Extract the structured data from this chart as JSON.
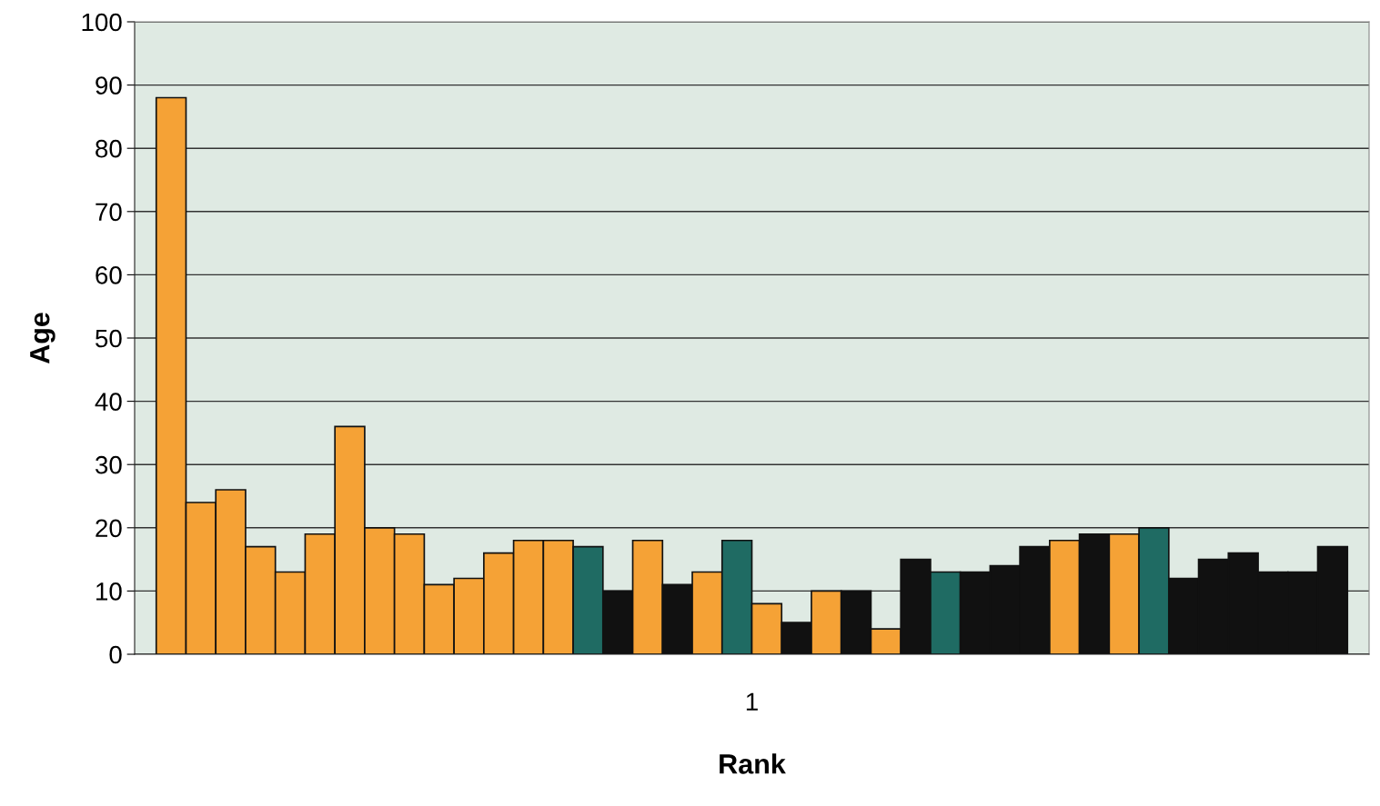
{
  "chart_data": {
    "type": "bar",
    "xlabel": "Rank",
    "ylabel": "Age",
    "categories": [
      "1"
    ],
    "ylim": [
      0,
      100
    ],
    "yticks": [
      0,
      10,
      20,
      30,
      40,
      50,
      60,
      70,
      80,
      90,
      100
    ],
    "grid": "y",
    "series": [
      {
        "color": "#f5a236",
        "values": [
          88
        ]
      },
      {
        "color": "#f5a236",
        "values": [
          24
        ]
      },
      {
        "color": "#f5a236",
        "values": [
          26
        ]
      },
      {
        "color": "#f5a236",
        "values": [
          17
        ]
      },
      {
        "color": "#f5a236",
        "values": [
          13
        ]
      },
      {
        "color": "#f5a236",
        "values": [
          19
        ]
      },
      {
        "color": "#f5a236",
        "values": [
          36
        ]
      },
      {
        "color": "#f5a236",
        "values": [
          20
        ]
      },
      {
        "color": "#f5a236",
        "values": [
          19
        ]
      },
      {
        "color": "#f5a236",
        "values": [
          11
        ]
      },
      {
        "color": "#f5a236",
        "values": [
          12
        ]
      },
      {
        "color": "#f5a236",
        "values": [
          16
        ]
      },
      {
        "color": "#f5a236",
        "values": [
          18
        ]
      },
      {
        "color": "#f5a236",
        "values": [
          18
        ]
      },
      {
        "color": "#1f6b63",
        "values": [
          17
        ]
      },
      {
        "color": "#111111",
        "values": [
          10
        ]
      },
      {
        "color": "#f5a236",
        "values": [
          18
        ]
      },
      {
        "color": "#111111",
        "values": [
          11
        ]
      },
      {
        "color": "#f5a236",
        "values": [
          13
        ]
      },
      {
        "color": "#1f6b63",
        "values": [
          18
        ]
      },
      {
        "color": "#f5a236",
        "values": [
          8
        ]
      },
      {
        "color": "#111111",
        "values": [
          5
        ]
      },
      {
        "color": "#f5a236",
        "values": [
          10
        ]
      },
      {
        "color": "#111111",
        "values": [
          10
        ]
      },
      {
        "color": "#f5a236",
        "values": [
          4
        ]
      },
      {
        "color": "#111111",
        "values": [
          15
        ]
      },
      {
        "color": "#1f6b63",
        "values": [
          13
        ]
      },
      {
        "color": "#111111",
        "values": [
          13
        ]
      },
      {
        "color": "#111111",
        "values": [
          14
        ]
      },
      {
        "color": "#111111",
        "values": [
          17
        ]
      },
      {
        "color": "#f5a236",
        "values": [
          18
        ]
      },
      {
        "color": "#111111",
        "values": [
          19
        ]
      },
      {
        "color": "#f5a236",
        "values": [
          19
        ]
      },
      {
        "color": "#1f6b63",
        "values": [
          20
        ]
      },
      {
        "color": "#111111",
        "values": [
          12
        ]
      },
      {
        "color": "#111111",
        "values": [
          15
        ]
      },
      {
        "color": "#111111",
        "values": [
          16
        ]
      },
      {
        "color": "#111111",
        "values": [
          13
        ]
      },
      {
        "color": "#111111",
        "values": [
          13
        ]
      },
      {
        "color": "#111111",
        "values": [
          17
        ]
      }
    ]
  }
}
